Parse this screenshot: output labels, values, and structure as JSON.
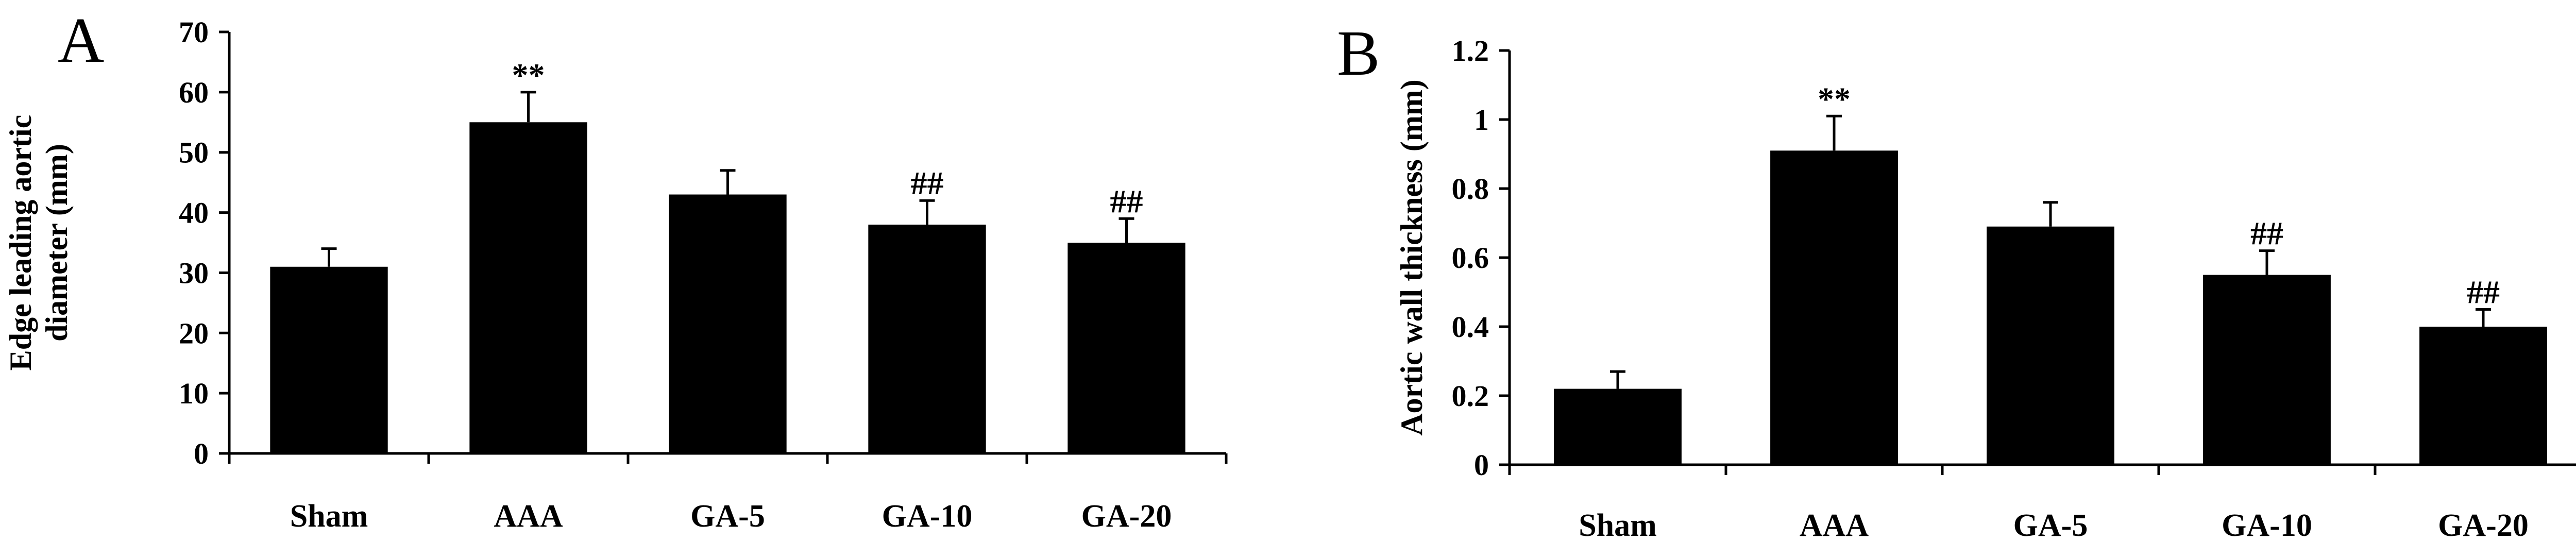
{
  "chart_data": [
    {
      "type": "bar",
      "panel_label": "A",
      "categories": [
        "Sham",
        "AAA",
        "GA-5",
        "GA-10",
        "GA-20"
      ],
      "values": [
        31,
        55,
        43,
        38,
        35
      ],
      "errors": [
        3,
        5,
        4,
        4,
        4
      ],
      "annotations": [
        "",
        "**",
        "",
        "##",
        "##"
      ],
      "ylabel_lines": [
        "Edge leading aortic",
        "diameter (mm)"
      ],
      "xlabel": "",
      "ylim": [
        0,
        70
      ],
      "yticks": [
        0,
        10,
        20,
        30,
        40,
        50,
        60,
        70
      ],
      "ytick_labels": [
        "0",
        "10",
        "20",
        "30",
        "40",
        "50",
        "60",
        "70"
      ],
      "bar_color": "#000000",
      "grid": false,
      "legend": "none"
    },
    {
      "type": "bar",
      "panel_label": "B",
      "categories": [
        "Sham",
        "AAA",
        "GA-5",
        "GA-10",
        "GA-20"
      ],
      "values": [
        0.22,
        0.91,
        0.69,
        0.55,
        0.4
      ],
      "errors": [
        0.05,
        0.1,
        0.07,
        0.07,
        0.05
      ],
      "annotations": [
        "",
        "**",
        "",
        "##",
        "##"
      ],
      "ylabel_lines": [
        "Aortic wall thickness (mm)"
      ],
      "xlabel": "",
      "ylim": [
        0,
        1.2
      ],
      "yticks": [
        0,
        0.2,
        0.4,
        0.6,
        0.8,
        1,
        1.2
      ],
      "ytick_labels": [
        "0",
        "0.2",
        "0.4",
        "0.6",
        "0.8",
        "1",
        "1.2"
      ],
      "bar_color": "#000000",
      "grid": false,
      "legend": "none"
    }
  ]
}
